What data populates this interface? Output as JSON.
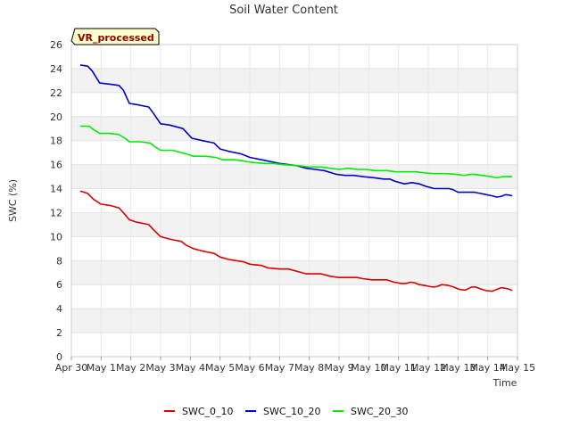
{
  "chart_data": {
    "type": "line",
    "title": "Soil Water Content",
    "xlabel": "Time",
    "ylabel": "SWC (%)",
    "badge": "VR_processed",
    "ylim": [
      0,
      26
    ],
    "yticks": [
      0,
      2,
      4,
      6,
      8,
      10,
      12,
      14,
      16,
      18,
      20,
      22,
      24,
      26
    ],
    "xlim": [
      0,
      15
    ],
    "xticks": [
      {
        "value": 0,
        "label": "Apr 30"
      },
      {
        "value": 1,
        "label": "May 1"
      },
      {
        "value": 2,
        "label": "May 2"
      },
      {
        "value": 3,
        "label": "May 3"
      },
      {
        "value": 4,
        "label": "May 4"
      },
      {
        "value": 5,
        "label": "May 5"
      },
      {
        "value": 6,
        "label": "May 6"
      },
      {
        "value": 7,
        "label": "May 7"
      },
      {
        "value": 8,
        "label": "May 8"
      },
      {
        "value": 9,
        "label": "May 9"
      },
      {
        "value": 10,
        "label": "May 10"
      },
      {
        "value": 11,
        "label": "May 11"
      },
      {
        "value": 12,
        "label": "May 12"
      },
      {
        "value": 13,
        "label": "May 13"
      },
      {
        "value": 14,
        "label": "May 14"
      },
      {
        "value": 15,
        "label": "May 15"
      }
    ],
    "grid": true,
    "legend_position": "bottom",
    "series": [
      {
        "name": "SWC_0_10",
        "color": "#dd0000",
        "points": [
          [
            0.3,
            13.8
          ],
          [
            0.55,
            13.6
          ],
          [
            0.75,
            13.1
          ],
          [
            1.0,
            12.7
          ],
          [
            1.3,
            12.6
          ],
          [
            1.6,
            12.4
          ],
          [
            1.75,
            12.0
          ],
          [
            1.95,
            11.4
          ],
          [
            2.2,
            11.2
          ],
          [
            2.6,
            11.0
          ],
          [
            2.75,
            10.6
          ],
          [
            3.0,
            10.0
          ],
          [
            3.3,
            9.8
          ],
          [
            3.7,
            9.6
          ],
          [
            3.85,
            9.3
          ],
          [
            4.1,
            9.0
          ],
          [
            4.4,
            8.8
          ],
          [
            4.8,
            8.6
          ],
          [
            5.0,
            8.3
          ],
          [
            5.3,
            8.1
          ],
          [
            5.8,
            7.9
          ],
          [
            6.0,
            7.7
          ],
          [
            6.4,
            7.6
          ],
          [
            6.6,
            7.4
          ],
          [
            7.0,
            7.3
          ],
          [
            7.3,
            7.3
          ],
          [
            7.6,
            7.1
          ],
          [
            7.9,
            6.9
          ],
          [
            8.2,
            6.9
          ],
          [
            8.4,
            6.9
          ],
          [
            8.7,
            6.7
          ],
          [
            9.0,
            6.6
          ],
          [
            9.3,
            6.6
          ],
          [
            9.6,
            6.6
          ],
          [
            9.8,
            6.5
          ],
          [
            10.1,
            6.4
          ],
          [
            10.4,
            6.4
          ],
          [
            10.6,
            6.4
          ],
          [
            10.85,
            6.2
          ],
          [
            11.1,
            6.1
          ],
          [
            11.25,
            6.1
          ],
          [
            11.4,
            6.2
          ],
          [
            11.55,
            6.15
          ],
          [
            11.7,
            6.0
          ],
          [
            11.95,
            5.9
          ],
          [
            12.15,
            5.8
          ],
          [
            12.3,
            5.85
          ],
          [
            12.45,
            6.0
          ],
          [
            12.65,
            5.95
          ],
          [
            12.85,
            5.8
          ],
          [
            13.05,
            5.6
          ],
          [
            13.25,
            5.55
          ],
          [
            13.45,
            5.8
          ],
          [
            13.6,
            5.8
          ],
          [
            13.75,
            5.65
          ],
          [
            13.95,
            5.5
          ],
          [
            14.15,
            5.45
          ],
          [
            14.3,
            5.6
          ],
          [
            14.45,
            5.75
          ],
          [
            14.6,
            5.7
          ],
          [
            14.75,
            5.6
          ],
          [
            14.82,
            5.5
          ]
        ]
      },
      {
        "name": "SWC_10_20",
        "color": "#0000cc",
        "points": [
          [
            0.3,
            24.3
          ],
          [
            0.55,
            24.2
          ],
          [
            0.7,
            23.8
          ],
          [
            0.95,
            22.8
          ],
          [
            1.3,
            22.7
          ],
          [
            1.6,
            22.6
          ],
          [
            1.75,
            22.2
          ],
          [
            1.95,
            21.1
          ],
          [
            2.2,
            21.0
          ],
          [
            2.6,
            20.8
          ],
          [
            2.75,
            20.3
          ],
          [
            3.0,
            19.4
          ],
          [
            3.3,
            19.3
          ],
          [
            3.75,
            19.0
          ],
          [
            3.9,
            18.6
          ],
          [
            4.05,
            18.2
          ],
          [
            4.4,
            18.0
          ],
          [
            4.8,
            17.8
          ],
          [
            5.0,
            17.3
          ],
          [
            5.3,
            17.1
          ],
          [
            5.7,
            16.9
          ],
          [
            6.0,
            16.6
          ],
          [
            6.4,
            16.4
          ],
          [
            6.8,
            16.2
          ],
          [
            7.0,
            16.1
          ],
          [
            7.3,
            16.0
          ],
          [
            7.6,
            15.9
          ],
          [
            7.9,
            15.7
          ],
          [
            8.2,
            15.6
          ],
          [
            8.5,
            15.5
          ],
          [
            8.9,
            15.2
          ],
          [
            9.2,
            15.1
          ],
          [
            9.5,
            15.1
          ],
          [
            9.8,
            15.0
          ],
          [
            10.2,
            14.9
          ],
          [
            10.5,
            14.8
          ],
          [
            10.7,
            14.8
          ],
          [
            10.9,
            14.6
          ],
          [
            11.2,
            14.4
          ],
          [
            11.45,
            14.5
          ],
          [
            11.7,
            14.4
          ],
          [
            11.9,
            14.2
          ],
          [
            12.2,
            14.0
          ],
          [
            12.5,
            14.0
          ],
          [
            12.7,
            14.0
          ],
          [
            12.85,
            13.9
          ],
          [
            13.0,
            13.7
          ],
          [
            13.35,
            13.7
          ],
          [
            13.55,
            13.7
          ],
          [
            13.75,
            13.6
          ],
          [
            13.95,
            13.5
          ],
          [
            14.15,
            13.4
          ],
          [
            14.3,
            13.3
          ],
          [
            14.45,
            13.35
          ],
          [
            14.6,
            13.5
          ],
          [
            14.75,
            13.45
          ],
          [
            14.82,
            13.4
          ]
        ]
      },
      {
        "name": "SWC_20_30",
        "color": "#00ee00",
        "points": [
          [
            0.3,
            19.2
          ],
          [
            0.6,
            19.2
          ],
          [
            0.75,
            18.9
          ],
          [
            0.95,
            18.6
          ],
          [
            1.3,
            18.6
          ],
          [
            1.6,
            18.5
          ],
          [
            1.8,
            18.2
          ],
          [
            1.95,
            17.9
          ],
          [
            2.3,
            17.9
          ],
          [
            2.65,
            17.8
          ],
          [
            2.8,
            17.5
          ],
          [
            3.0,
            17.2
          ],
          [
            3.4,
            17.2
          ],
          [
            3.7,
            17.0
          ],
          [
            3.85,
            16.9
          ],
          [
            4.1,
            16.7
          ],
          [
            4.5,
            16.7
          ],
          [
            4.85,
            16.6
          ],
          [
            5.1,
            16.4
          ],
          [
            5.5,
            16.4
          ],
          [
            5.8,
            16.3
          ],
          [
            6.0,
            16.2
          ],
          [
            6.5,
            16.1
          ],
          [
            6.8,
            16.1
          ],
          [
            7.1,
            16.0
          ],
          [
            7.4,
            15.95
          ],
          [
            7.7,
            15.9
          ],
          [
            8.0,
            15.8
          ],
          [
            8.4,
            15.8
          ],
          [
            8.7,
            15.7
          ],
          [
            9.0,
            15.6
          ],
          [
            9.3,
            15.7
          ],
          [
            9.6,
            15.6
          ],
          [
            9.9,
            15.6
          ],
          [
            10.2,
            15.5
          ],
          [
            10.6,
            15.5
          ],
          [
            10.9,
            15.4
          ],
          [
            11.2,
            15.4
          ],
          [
            11.6,
            15.4
          ],
          [
            11.9,
            15.3
          ],
          [
            12.2,
            15.25
          ],
          [
            12.6,
            15.25
          ],
          [
            12.9,
            15.2
          ],
          [
            13.2,
            15.1
          ],
          [
            13.5,
            15.2
          ],
          [
            13.8,
            15.1
          ],
          [
            14.1,
            15.0
          ],
          [
            14.3,
            14.9
          ],
          [
            14.5,
            15.0
          ],
          [
            14.82,
            15.0
          ]
        ]
      }
    ]
  }
}
